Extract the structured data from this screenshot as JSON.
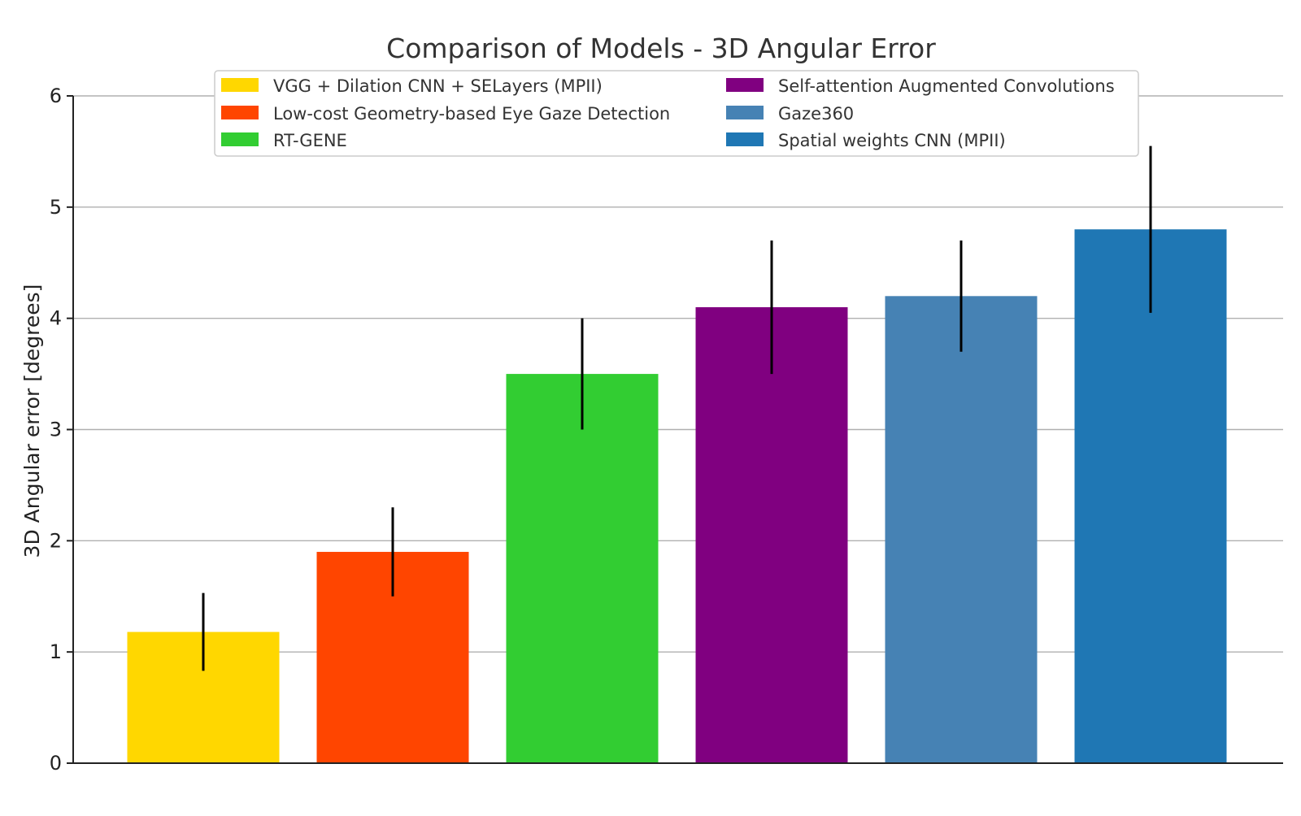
{
  "chart_data": {
    "type": "bar",
    "title": "Comparison of Models - 3D Angular Error",
    "xlabel": "",
    "ylabel": "3D Angular error [degrees]",
    "ylim": [
      0,
      6
    ],
    "yticks": [
      0,
      1,
      2,
      3,
      4,
      5,
      6
    ],
    "grid": "horizontal",
    "legend_position": "top-center",
    "categories": [
      "VGG + Dilation CNN + SELayers (MPII)",
      "Low-cost Geometry-based Eye Gaze Detection",
      "RT-GENE",
      "Self-attention Augmented Convolutions",
      "Gaze360",
      "Spatial weights CNN (MPII)"
    ],
    "values": [
      1.18,
      1.9,
      3.5,
      4.1,
      4.2,
      4.8
    ],
    "errors": [
      0.35,
      0.4,
      0.5,
      0.6,
      0.5,
      0.75
    ],
    "colors": [
      "#FFD700",
      "#FF4500",
      "#32CD32",
      "#800080",
      "#4682B4",
      "#1F77B4"
    ]
  }
}
